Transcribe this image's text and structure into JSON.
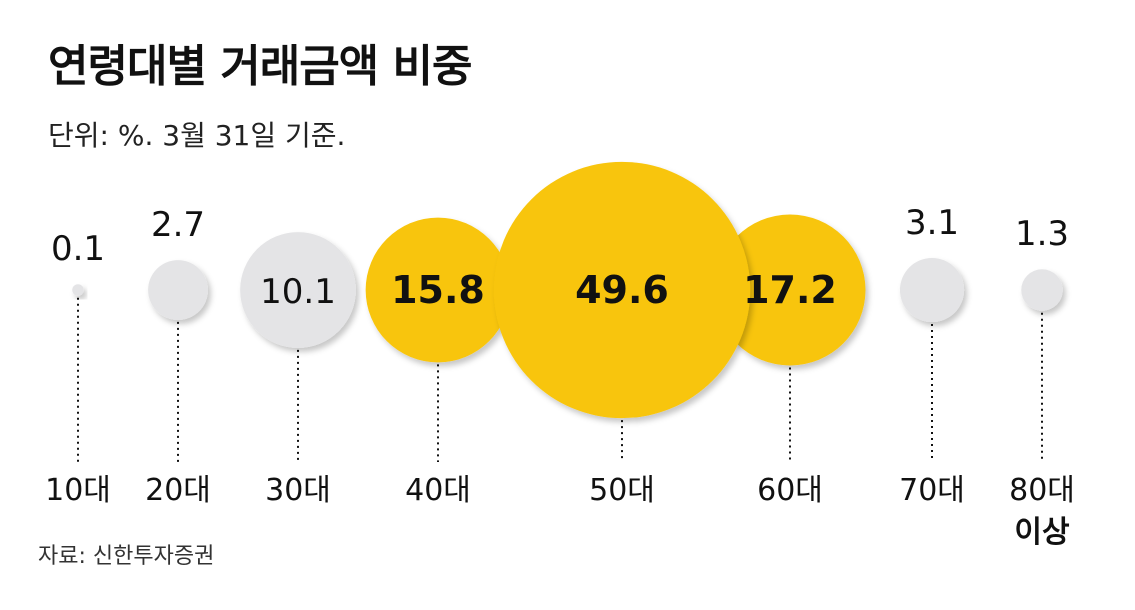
{
  "title": "연령대별 거래금액 비중",
  "subtitle": "단위: %. 3월 31일 기준.",
  "source": "자료: 신한투자증권",
  "colors": {
    "highlight": "#F8C50A",
    "muted": "#E4E4E6",
    "text": "#111111"
  },
  "chart_data": {
    "type": "bubble",
    "title": "연령대별 거래금액 비중",
    "unit": "%",
    "categories": [
      "10대",
      "20대",
      "30대",
      "40대",
      "50대",
      "60대",
      "70대",
      "80대 이상"
    ],
    "values": [
      0.1,
      2.7,
      10.1,
      15.8,
      49.6,
      17.2,
      3.1,
      1.3
    ],
    "value_labels": [
      "0.1",
      "2.7",
      "10.1",
      "15.8",
      "49.6",
      "17.2",
      "3.1",
      "1.3"
    ],
    "highlighted": [
      false,
      false,
      false,
      true,
      true,
      true,
      false,
      false
    ],
    "label_inside": [
      false,
      false,
      true,
      true,
      true,
      true,
      false,
      false
    ]
  }
}
